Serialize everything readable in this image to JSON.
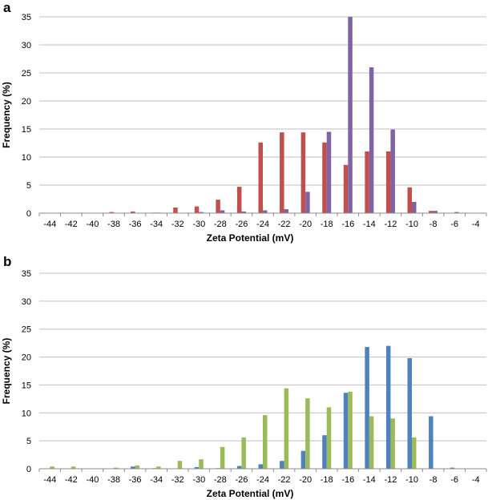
{
  "chart_data": [
    {
      "type": "bar",
      "panel_label": "a",
      "xlabel": "Zeta Potential (mV)",
      "ylabel": "Frequency (%)",
      "ylim": [
        0,
        35
      ],
      "yticks": [
        "0",
        "5",
        "10",
        "15",
        "20",
        "25",
        "30",
        "35"
      ],
      "grid": true,
      "categories": [
        "-44",
        "-42",
        "-40",
        "-38",
        "-36",
        "-34",
        "-32",
        "-30",
        "-28",
        "-26",
        "-24",
        "-22",
        "-20",
        "-18",
        "-16",
        "-14",
        "-12",
        "-10",
        "-8",
        "-6",
        "-4"
      ],
      "series": [
        {
          "color": "#c0504d",
          "values": [
            0,
            0,
            0,
            0.2,
            0.3,
            0.1,
            1.0,
            1.2,
            2.4,
            4.7,
            12.6,
            14.4,
            14.4,
            12.6,
            8.6,
            11.0,
            11.0,
            4.6,
            0.4,
            0,
            0
          ]
        },
        {
          "color": "#8064a2",
          "values": [
            0,
            0,
            0,
            0,
            0,
            0.1,
            0,
            0.2,
            0.5,
            0.3,
            0.5,
            0.7,
            3.8,
            14.5,
            35.0,
            26.0,
            14.9,
            2.0,
            0.4,
            0.2,
            0
          ]
        }
      ]
    },
    {
      "type": "bar",
      "panel_label": "b",
      "xlabel": "Zeta Potential (mV)",
      "ylabel": "Frequency (%)",
      "ylim": [
        0,
        35
      ],
      "yticks": [
        "0",
        "5",
        "10",
        "15",
        "20",
        "25",
        "30",
        "35"
      ],
      "grid": true,
      "categories": [
        "-44",
        "-42",
        "-40",
        "-38",
        "-36",
        "-34",
        "-32",
        "-30",
        "-28",
        "-26",
        "-24",
        "-22",
        "-20",
        "-18",
        "-16",
        "-14",
        "-12",
        "-10",
        "-8",
        "-6",
        "-4"
      ],
      "series": [
        {
          "color": "#4f81bd",
          "values": [
            0,
            0,
            0,
            0,
            0.4,
            0.1,
            0,
            0.3,
            0.1,
            0.5,
            0.8,
            1.4,
            3.2,
            6.0,
            13.6,
            21.8,
            22.0,
            19.8,
            9.4,
            0.2,
            0
          ]
        },
        {
          "color": "#9bbb59",
          "values": [
            0.4,
            0.4,
            0,
            0.2,
            0.6,
            0.4,
            1.4,
            1.7,
            3.9,
            5.6,
            9.6,
            14.4,
            12.6,
            11.0,
            13.8,
            9.4,
            9.0,
            5.6,
            0,
            0,
            0
          ]
        }
      ]
    }
  ]
}
